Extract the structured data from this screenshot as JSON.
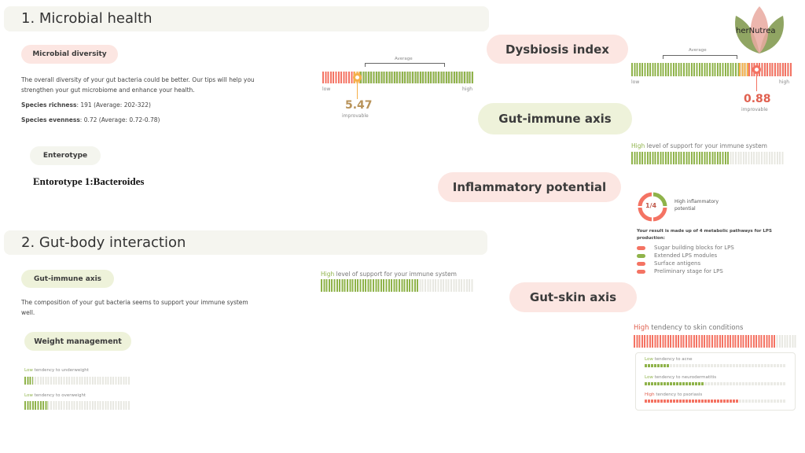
{
  "logo": {
    "text": "herNutrea"
  },
  "section1": {
    "title": "1. Microbial health",
    "diversity": {
      "label": "Microbial diversity",
      "text1": "The overall diversity of your gut bacteria could be better. Our tips will help you",
      "text2": "strengthen your gut microbiome and enhance your health.",
      "richness_label": "Species richness",
      "richness_value": ": 191 (Average: 202-322)",
      "evenness_label": "Species evenness",
      "evenness_value": ": 0.72 (Average: 0.72-0.78)",
      "gauge": {
        "average_label": "Average",
        "low": "low",
        "high": "high",
        "value": "5.47",
        "status": "improvable",
        "position_pct": 23,
        "color": "#b8935a"
      }
    },
    "enterotype": {
      "label": "Enterotype",
      "value": "Entorotype 1:Bacteroides"
    }
  },
  "section2": {
    "title": "2. Gut-body interaction",
    "immune": {
      "label": "Gut-immune axis",
      "text1": "The composition of your gut bacteria seems to support your immune system",
      "text2": "well.",
      "level": "High",
      "bar_text": " level of support for your immune system",
      "fill_pct": 64
    },
    "weight": {
      "label": "Weight management",
      "items": [
        {
          "level": "Low",
          "text": " tendency to underweight",
          "fill_pct": 8
        },
        {
          "level": "Low",
          "text": " tendency to overweight",
          "fill_pct": 22
        }
      ]
    }
  },
  "right": {
    "dysbiosis": {
      "label": "Dysbiosis index",
      "average_label": "Average",
      "low": "low",
      "high": "high",
      "value": "0.88",
      "status": "improvable",
      "position_pct": 78,
      "color": "#e0604f"
    },
    "immune": {
      "label": "Gut-immune axis",
      "level": "High",
      "bar_text": " level of support for your immune system",
      "fill_pct": 64
    },
    "inflammatory": {
      "label": "Inflammatory potential",
      "donut": "1/4",
      "status": "High inflammatory potential",
      "desc": "Your result is made up of 4 metabolic pathways for LPS production:",
      "pathways": [
        {
          "name": "Sugar building blocks for LPS",
          "color": "#f47363"
        },
        {
          "name": "Extended LPS modules",
          "color": "#8fb34a"
        },
        {
          "name": "Surface antigens",
          "color": "#f47363"
        },
        {
          "name": "Preliminary stage for LPS",
          "color": "#f47363"
        }
      ]
    },
    "skin": {
      "label": "Gut-skin axis",
      "level": "High",
      "bar_text": " tendency to skin conditions",
      "fill_pct": 87,
      "items": [
        {
          "level": "Low",
          "text": " tendency to acne",
          "fill_pct": 18,
          "tone": "g"
        },
        {
          "level": "Low",
          "text": " tendency to neurodermatitis",
          "fill_pct": 42,
          "tone": "g"
        },
        {
          "level": "High",
          "text": " tendency to psoriasis",
          "fill_pct": 66,
          "tone": "r"
        }
      ]
    }
  }
}
